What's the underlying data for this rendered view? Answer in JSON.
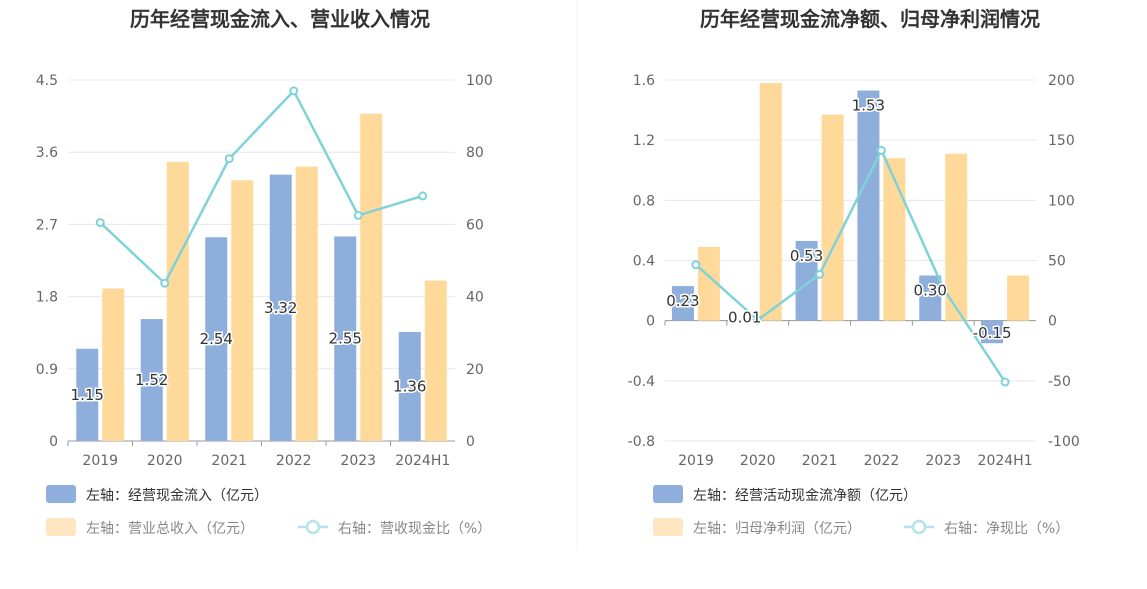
{
  "chart_data": [
    {
      "type": "bar",
      "title": "历年经营现金流入、营业收入情况",
      "categories": [
        "2019",
        "2020",
        "2021",
        "2022",
        "2023",
        "2024H1"
      ],
      "left_axis": {
        "ticks": [
          "0",
          "0.9",
          "1.8",
          "2.7",
          "3.6",
          "4.5"
        ],
        "ylim": [
          0,
          4.5
        ]
      },
      "right_axis": {
        "ticks": [
          "0",
          "20",
          "40",
          "60",
          "80",
          "100"
        ],
        "ylim": [
          0,
          100
        ]
      },
      "series": [
        {
          "name": "左轴：经营现金流入（亿元）",
          "axis": "left",
          "kind": "bar",
          "color": "#8eaedc",
          "values": [
            1.15,
            1.52,
            2.54,
            3.32,
            2.55,
            1.36
          ],
          "labels": [
            "1.15",
            "1.52",
            "2.54",
            "3.32",
            "2.55",
            "1.36"
          ]
        },
        {
          "name": "左轴：营业总收入（亿元）",
          "axis": "left",
          "kind": "bar",
          "color": "#ffd999",
          "values": [
            1.9,
            3.48,
            3.25,
            3.42,
            4.08,
            2.0
          ]
        },
        {
          "name": "右轴：营收现金比（%）",
          "axis": "right",
          "kind": "line",
          "color": "#7fd3d8",
          "values": [
            60.5,
            43.7,
            78.2,
            97.0,
            62.5,
            67.9
          ]
        }
      ]
    },
    {
      "type": "bar",
      "title": "历年经营现金流净额、归母净利润情况",
      "categories": [
        "2019",
        "2020",
        "2021",
        "2022",
        "2023",
        "2024H1"
      ],
      "left_axis": {
        "ticks": [
          "-0.8",
          "-0.4",
          "0",
          "0.4",
          "0.8",
          "1.2",
          "1.6"
        ],
        "ylim": [
          -0.8,
          1.6
        ]
      },
      "right_axis": {
        "ticks": [
          "-100",
          "-50",
          "0",
          "50",
          "100",
          "150",
          "200"
        ],
        "ylim": [
          -100,
          200
        ]
      },
      "series": [
        {
          "name": "左轴：经营活动现金流净额（亿元）",
          "axis": "left",
          "kind": "bar",
          "color": "#8eaedc",
          "values": [
            0.23,
            0.01,
            0.53,
            1.53,
            0.3,
            -0.15
          ],
          "labels": [
            "0.23",
            "0.01",
            "0.53",
            "1.53",
            "0.30",
            "-0.15"
          ]
        },
        {
          "name": "左轴：归母净利润（亿元）",
          "axis": "left",
          "kind": "bar",
          "color": "#ffd999",
          "values": [
            0.49,
            1.58,
            1.37,
            1.08,
            1.11,
            0.3
          ]
        },
        {
          "name": "右轴：净现比（%）",
          "axis": "right",
          "kind": "line",
          "color": "#7fd3d8",
          "values": [
            46.5,
            0.5,
            38.5,
            141.5,
            27.0,
            -51.0
          ]
        }
      ]
    }
  ]
}
